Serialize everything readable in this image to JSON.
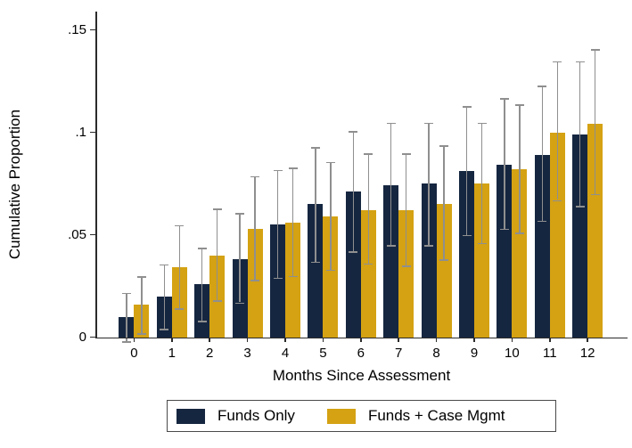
{
  "chart_data": {
    "type": "bar",
    "title": "",
    "xlabel": "Months Since Assessment",
    "ylabel": "Cumulative Proportion",
    "categories": [
      "0",
      "1",
      "2",
      "3",
      "4",
      "5",
      "6",
      "7",
      "8",
      "9",
      "10",
      "11",
      "12"
    ],
    "y_ticks": [
      {
        "value": 0,
        "label": "0"
      },
      {
        "value": 0.05,
        "label": ".05"
      },
      {
        "value": 0.1,
        "label": ".1"
      },
      {
        "value": 0.15,
        "label": ".15"
      }
    ],
    "ylim": [
      0,
      0.159
    ],
    "grid": false,
    "legend_position": "bottom",
    "error_bars": true,
    "colors": {
      "axis": "#2b2b2b",
      "error_bar": "#8f8f8f",
      "text": "#000000",
      "background": "#ffffff"
    },
    "series": [
      {
        "name": "Funds Only",
        "color": "#152640",
        "values": [
          0.01,
          0.02,
          0.026,
          0.038,
          0.055,
          0.065,
          0.071,
          0.074,
          0.075,
          0.081,
          0.084,
          0.089,
          0.099
        ],
        "ci_low": [
          -0.002,
          0.004,
          0.008,
          0.017,
          0.029,
          0.037,
          0.042,
          0.045,
          0.045,
          0.05,
          0.053,
          0.057,
          0.064
        ],
        "ci_high": [
          0.021,
          0.035,
          0.043,
          0.06,
          0.081,
          0.092,
          0.1,
          0.104,
          0.104,
          0.112,
          0.116,
          0.122,
          0.134
        ]
      },
      {
        "name": "Funds + Case Mgmt",
        "color": "#d4a213",
        "values": [
          0.016,
          0.034,
          0.04,
          0.053,
          0.056,
          0.059,
          0.062,
          0.062,
          0.065,
          0.075,
          0.082,
          0.1,
          0.104
        ],
        "ci_low": [
          0.002,
          0.014,
          0.018,
          0.028,
          0.03,
          0.033,
          0.036,
          0.035,
          0.038,
          0.046,
          0.051,
          0.067,
          0.07
        ],
        "ci_high": [
          0.029,
          0.054,
          0.062,
          0.078,
          0.082,
          0.085,
          0.089,
          0.089,
          0.093,
          0.104,
          0.113,
          0.134,
          0.14
        ]
      }
    ]
  }
}
